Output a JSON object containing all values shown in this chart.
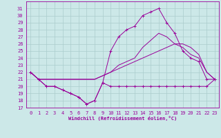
{
  "bg_color": "#cce8e8",
  "line_color": "#990099",
  "grid_color": "#aacccc",
  "xlabel": "Windchill (Refroidissement éolien,°C)",
  "xlim": [
    -0.5,
    23.5
  ],
  "ylim": [
    17,
    32
  ],
  "yticks": [
    17,
    18,
    19,
    20,
    21,
    22,
    23,
    24,
    25,
    26,
    27,
    28,
    29,
    30,
    31
  ],
  "xticks": [
    0,
    1,
    2,
    3,
    4,
    5,
    6,
    7,
    8,
    9,
    10,
    11,
    12,
    13,
    14,
    15,
    16,
    17,
    18,
    19,
    20,
    21,
    22,
    23
  ],
  "series": [
    {
      "x": [
        0,
        1,
        2,
        3,
        4,
        5,
        6,
        7,
        8,
        9,
        10,
        11,
        12,
        13,
        14,
        15,
        16,
        17,
        18,
        19,
        20,
        21,
        22,
        23
      ],
      "y": [
        22,
        21,
        20,
        20,
        19.5,
        19,
        18.5,
        17.5,
        18,
        20.5,
        20,
        20,
        20,
        20,
        20,
        20,
        20,
        20,
        20,
        20,
        20,
        20,
        20,
        21
      ],
      "marker": true
    },
    {
      "x": [
        0,
        1,
        2,
        3,
        4,
        5,
        6,
        7,
        8,
        9,
        10,
        11,
        12,
        13,
        14,
        15,
        16,
        17,
        18,
        19,
        20,
        21,
        22,
        23
      ],
      "y": [
        22,
        21,
        21,
        21,
        21,
        21,
        21,
        21,
        21,
        21.5,
        22,
        22.5,
        23,
        23.5,
        24,
        24.5,
        25,
        25.5,
        26,
        26,
        25.5,
        24.5,
        22,
        21
      ],
      "marker": false
    },
    {
      "x": [
        0,
        1,
        2,
        3,
        4,
        5,
        6,
        7,
        8,
        9,
        10,
        11,
        12,
        13,
        14,
        15,
        16,
        17,
        18,
        19,
        20,
        21,
        22,
        23
      ],
      "y": [
        22,
        21,
        21,
        21,
        21,
        21,
        21,
        21,
        21,
        21.5,
        22,
        23,
        23.5,
        24,
        25.5,
        26.5,
        27.5,
        27,
        26,
        25.5,
        24.5,
        24,
        22,
        21
      ],
      "marker": false
    },
    {
      "x": [
        0,
        1,
        2,
        3,
        4,
        5,
        6,
        7,
        8,
        9,
        10,
        11,
        12,
        13,
        14,
        15,
        16,
        17,
        18,
        19,
        20,
        21,
        22,
        23
      ],
      "y": [
        22,
        21,
        20,
        20,
        19.5,
        19,
        18.5,
        17.5,
        18,
        20.5,
        25,
        27,
        28,
        28.5,
        30,
        30.5,
        31,
        29,
        27.5,
        25,
        24,
        23.5,
        21,
        21
      ],
      "marker": true
    }
  ],
  "tick_fontsize": 5,
  "xlabel_fontsize": 5,
  "marker_size": 2.5,
  "lw": 0.7
}
